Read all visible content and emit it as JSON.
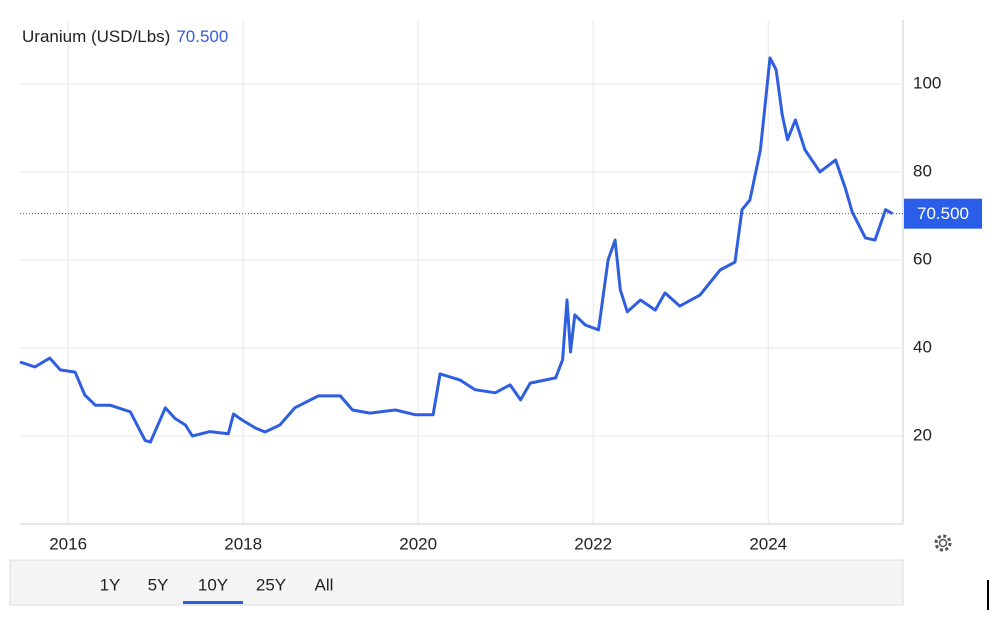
{
  "chart_data": {
    "type": "line",
    "title": "Uranium (USD/Lbs)",
    "current": {
      "value": 70.5,
      "label": "70.500"
    },
    "x": [
      2015.45,
      2015.62,
      2015.79,
      2015.91,
      2016.08,
      2016.19,
      2016.31,
      2016.48,
      2016.71,
      2016.88,
      2016.94,
      2017.05,
      2017.11,
      2017.22,
      2017.34,
      2017.42,
      2017.62,
      2017.83,
      2017.89,
      2017.99,
      2018.14,
      2018.25,
      2018.42,
      2018.59,
      2018.86,
      2019.11,
      2019.25,
      2019.45,
      2019.74,
      2019.97,
      2020.17,
      2020.25,
      2020.48,
      2020.65,
      2020.88,
      2021.05,
      2021.17,
      2021.28,
      2021.57,
      2021.65,
      2021.7,
      2021.74,
      2021.79,
      2021.91,
      2022.06,
      2022.17,
      2022.25,
      2022.31,
      2022.39,
      2022.54,
      2022.71,
      2022.82,
      2022.99,
      2023.22,
      2023.45,
      2023.62,
      2023.7,
      2023.79,
      2023.91,
      2024.02,
      2024.09,
      2024.16,
      2024.22,
      2024.31,
      2024.42,
      2024.59,
      2024.77,
      2024.88,
      2024.96,
      2025.11,
      2025.22,
      2025.34,
      2025.42
    ],
    "series": [
      {
        "name": "Uranium",
        "color": "#2f5fe0",
        "values": [
          36.8,
          35.7,
          37.7,
          35,
          34.5,
          29.3,
          27,
          27,
          25.5,
          19,
          18.6,
          23.6,
          26.4,
          24,
          22.5,
          20,
          21,
          20.5,
          25,
          23.6,
          21.8,
          20.9,
          22.5,
          26.4,
          29.1,
          29.1,
          25.9,
          25.2,
          25.9,
          24.8,
          24.8,
          34.1,
          32.7,
          30.5,
          29.8,
          31.6,
          28.2,
          32,
          33.2,
          37.3,
          50.9,
          39.1,
          47.5,
          45.2,
          44.1,
          60,
          64.5,
          53.2,
          48.2,
          50.9,
          48.6,
          52.5,
          49.5,
          52,
          57.7,
          59.5,
          71.4,
          73.6,
          85,
          105.9,
          103.2,
          93,
          87.3,
          91.8,
          85,
          80,
          82.7,
          76.4,
          70.9,
          65,
          64.5,
          71.4,
          70.5
        ]
      }
    ],
    "xlim": [
      2015.45,
      2025.54
    ],
    "xticks": [
      2016,
      2018,
      2020,
      2022,
      2024
    ],
    "ylim": [
      0,
      114.5
    ],
    "yticks": [
      20,
      40,
      60,
      80,
      100
    ],
    "grid": true,
    "range_buttons": [
      "1Y",
      "5Y",
      "10Y",
      "25Y",
      "All"
    ],
    "selected_range": 2
  }
}
